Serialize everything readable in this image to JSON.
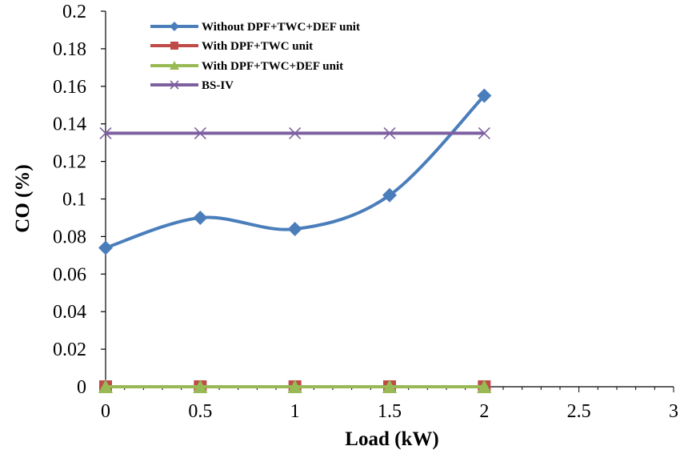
{
  "chart_data": {
    "type": "line",
    "xlabel": "Load (kW)",
    "ylabel": "CO (%)",
    "xlim": [
      0,
      3
    ],
    "ylim": [
      0,
      0.2
    ],
    "xticks": [
      "0",
      "0.5",
      "1",
      "1.5",
      "2",
      "2.5",
      "3"
    ],
    "yticks": [
      "0",
      "0.02",
      "0.04",
      "0.06",
      "0.08",
      "0.1",
      "0.12",
      "0.14",
      "0.16",
      "0.18",
      "0.2"
    ],
    "grid": false,
    "legend_position": "top-left",
    "series": [
      {
        "name": "Without DPF+TWC+DEF unit",
        "color": "#4a7ebb",
        "marker": "diamond",
        "smooth": true,
        "x": [
          0,
          0.5,
          1,
          1.5,
          2
        ],
        "y": [
          0.074,
          0.09,
          0.084,
          0.102,
          0.155
        ]
      },
      {
        "name": "With DPF+TWC unit",
        "color": "#be4b48",
        "marker": "square",
        "smooth": false,
        "x": [
          0,
          0.5,
          1,
          1.5,
          2
        ],
        "y": [
          0,
          0,
          0,
          0,
          0
        ]
      },
      {
        "name": "With DPF+TWC+DEF unit",
        "color": "#98b954",
        "marker": "triangle",
        "smooth": false,
        "x": [
          0,
          0.5,
          1,
          1.5,
          2
        ],
        "y": [
          0,
          0,
          0,
          0,
          0
        ]
      },
      {
        "name": "BS-IV",
        "color": "#7d60a0",
        "marker": "x",
        "smooth": false,
        "x": [
          0,
          0.5,
          1,
          1.5,
          2
        ],
        "y": [
          0.135,
          0.135,
          0.135,
          0.135,
          0.135
        ]
      }
    ]
  }
}
